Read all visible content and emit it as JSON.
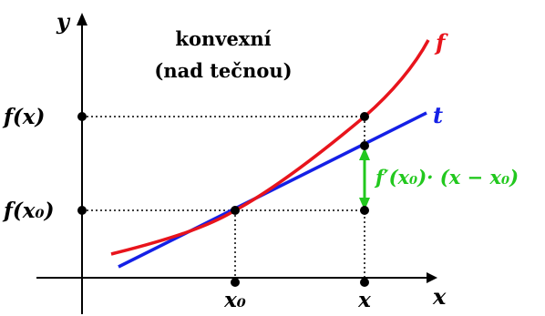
{
  "title_line1": "konvexní",
  "title_line2": "(nad tečnou)",
  "axes": {
    "x": "x",
    "y": "y"
  },
  "ticks": {
    "x0": "x₀",
    "x": "x",
    "fx": "f(x)",
    "fx0": "f(x₀)"
  },
  "curves": {
    "f_label": "f",
    "t_label": "t"
  },
  "difference_label": "f′(x₀)· (x − x₀)",
  "colors": {
    "f": "#e8141c",
    "t": "#1420e6",
    "diff": "#22c81e",
    "axis": "#000000"
  }
}
